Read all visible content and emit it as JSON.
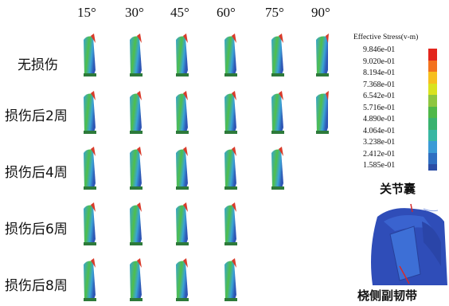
{
  "columns": [
    "15°",
    "30°",
    "45°",
    "60°",
    "75°",
    "90°"
  ],
  "rows": [
    {
      "label": "无损伤",
      "count": 6
    },
    {
      "label": "损伤后2周",
      "count": 6
    },
    {
      "label": "损伤后4周",
      "count": 5
    },
    {
      "label": "损伤后6周",
      "count": 4
    },
    {
      "label": "损伤后8周",
      "count": 4
    }
  ],
  "legend": {
    "title": "Effective Stress(v-m)",
    "values": [
      "9.846e-01",
      "9.020e-01",
      "8.194e-01",
      "7.368e-01",
      "6.542e-01",
      "5.716e-01",
      "4.890e-01",
      "4.064e-01",
      "3.238e-01",
      "2.412e-01",
      "1.585e-01"
    ],
    "colors": [
      "#e3261d",
      "#f3721e",
      "#f7bf1e",
      "#d9e21f",
      "#8ec63f",
      "#4fb848",
      "#39b26f",
      "#38b7a3",
      "#3b9bd6",
      "#2f6fc1",
      "#2b4ea6"
    ]
  },
  "annotations": {
    "top": "关节囊",
    "bottom": "桡侧副韧带"
  },
  "specimen_colors": {
    "body": "#3aa3d6",
    "dark": "#2e56b5",
    "green": "#4fbf4a",
    "red": "#d93b2a",
    "base": "#2d7a3a"
  }
}
